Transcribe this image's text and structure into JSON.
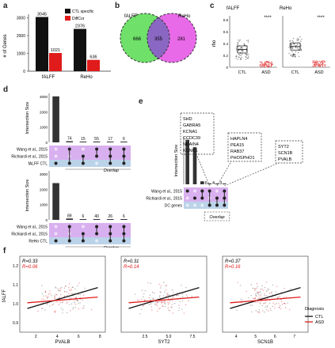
{
  "colors": {
    "ctl": "#111111",
    "diffcor": "#e01b1b",
    "falff": "#6fe06a",
    "reho": "#e86ae8",
    "purple": "#c98ee8",
    "blue": "#9ec0e0"
  },
  "panel_labels": {
    "a": "a",
    "b": "b",
    "c": "c",
    "d": "d",
    "e": "e",
    "f": "f"
  },
  "chart_data": [
    {
      "id": "a",
      "type": "bar",
      "categories": [
        "fALFF",
        "ReHo"
      ],
      "series": [
        {
          "name": "CTL specific",
          "values": [
            3045,
            2376
          ]
        },
        {
          "name": "DiffCor",
          "values": [
            1021,
            636
          ]
        }
      ],
      "ylabel": "# of Genes",
      "ylim": [
        0,
        3200
      ],
      "yticks": [
        "0",
        "1000",
        "2000",
        "3000"
      ],
      "legend": "top-right"
    },
    {
      "id": "b",
      "type": "venn",
      "sets": [
        "fALFF",
        "ReHo"
      ],
      "values": [
        666,
        355,
        281
      ]
    },
    {
      "id": "c",
      "type": "box",
      "panels": [
        "fALFF",
        "ReHo"
      ],
      "categories": [
        "CTL",
        "ASD"
      ],
      "ylabel": "rho",
      "sig": "****",
      "yticks": [
        "0",
        "0.2",
        "0.4",
        "0.6",
        "0.8"
      ],
      "medians": {
        "fALFF": [
          0.3,
          0.05
        ],
        "ReHo": [
          0.35,
          0.06
        ]
      }
    },
    {
      "id": "d",
      "type": "upset",
      "blocks": [
        {
          "bars": [
            3000,
            74,
            15,
            55,
            17,
            6
          ],
          "labels": [
            "",
            "74",
            "15",
            "55",
            "17",
            "6"
          ],
          "rows": [
            "Wang et al., 2015",
            "Richiardi et al., 2015",
            "fALFF CTL"
          ]
        },
        {
          "bars": [
            2400,
            89,
            6,
            40,
            26,
            6
          ],
          "labels": [
            "",
            "89",
            "6",
            "40",
            "26",
            "6"
          ],
          "rows": [
            "Wang et al., 2015",
            "Richiardi et al., 2015",
            "ReHo CTL"
          ]
        }
      ],
      "ylabel": "Intersection Size",
      "yticks": [
        "0",
        "1000",
        "2000",
        "3000"
      ],
      "overlap": "Overlap"
    },
    {
      "id": "e",
      "type": "upset",
      "bars": [
        300,
        250,
        20,
        6,
        4,
        3
      ],
      "rows": [
        "Wang et al., 2015",
        "Richiardi et al., 2015",
        "DC genes"
      ],
      "ylabel": "Intersection Size",
      "counts": [
        "6",
        "4",
        "3"
      ],
      "genes": [
        [
          "SHD",
          "GABRA5",
          "KCNA1",
          "CCDC39",
          "NKAIN4",
          "KCNC1"
        ],
        [
          "HAPLN4",
          "PEA15",
          "RAB37",
          "PHOSPHO1"
        ],
        [
          "SYT2",
          "SCN1B",
          "PVALB"
        ]
      ],
      "overlap": "Overlap"
    },
    {
      "id": "f",
      "type": "scatter",
      "panels": [
        {
          "xlabel": "PVALB",
          "r_ctl": "R=0.33",
          "r_asd": "R=0.06",
          "xticks": [
            "2",
            "4",
            "6",
            "8"
          ],
          "xlim": [
            0.5,
            8.5
          ]
        },
        {
          "xlabel": "SYT2",
          "r_ctl": "R=0.31",
          "r_asd": "R=0.14",
          "xticks": [
            "2.5",
            "5.0",
            "7.5"
          ],
          "xlim": [
            0,
            9
          ]
        },
        {
          "xlabel": "SCN1B",
          "r_ctl": "R=0.37",
          "r_asd": "R=0.16",
          "xticks": [
            "4",
            "5",
            "6",
            "7"
          ],
          "xlim": [
            3.3,
            7.7
          ]
        }
      ],
      "ylabel": "fALFF",
      "yticks": [
        "0.9",
        "1.0",
        "1.1",
        "1.2"
      ],
      "ylim": [
        0.85,
        1.25
      ],
      "legend": {
        "title": "Diagnosis",
        "items": [
          "CTL",
          "ASD"
        ]
      }
    }
  ]
}
